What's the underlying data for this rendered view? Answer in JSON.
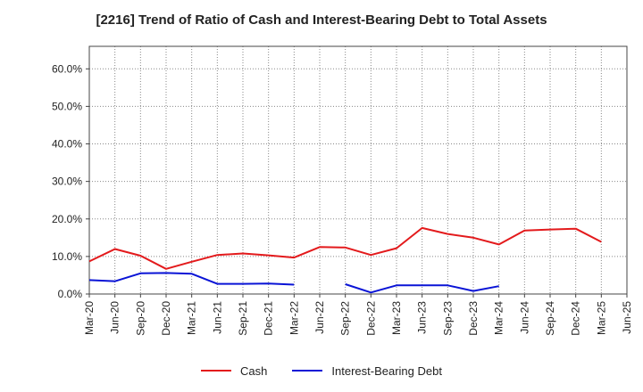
{
  "chart_data": {
    "type": "line",
    "title": "[2216]  Trend of Ratio of Cash and Interest-Bearing Debt to Total Assets",
    "xlabel": "",
    "ylabel": "",
    "ylim": [
      0,
      66
    ],
    "y_ticks": [
      "0.0%",
      "10.0%",
      "20.0%",
      "30.0%",
      "40.0%",
      "50.0%",
      "60.0%"
    ],
    "y_tick_values": [
      0,
      10,
      20,
      30,
      40,
      50,
      60
    ],
    "categories": [
      "Mar-20",
      "Jun-20",
      "Sep-20",
      "Dec-20",
      "Mar-21",
      "Jun-21",
      "Sep-21",
      "Dec-21",
      "Mar-22",
      "Jun-22",
      "Sep-22",
      "Dec-22",
      "Mar-23",
      "Jun-23",
      "Sep-23",
      "Dec-23",
      "Mar-24",
      "Jun-24",
      "Sep-24",
      "Dec-24",
      "Mar-25",
      "Jun-25"
    ],
    "grid": true,
    "legend_position": "bottom",
    "series": [
      {
        "name": "Cash",
        "color": "#e31a1c",
        "values": [
          8.7,
          12.0,
          10.2,
          6.7,
          8.6,
          10.4,
          10.8,
          10.3,
          9.7,
          12.5,
          12.4,
          10.4,
          12.2,
          17.6,
          16.0,
          15.0,
          13.2,
          16.9,
          17.2,
          17.4,
          13.9,
          null
        ]
      },
      {
        "name": "Interest-Bearing Debt",
        "color": "#0a14d6",
        "values": [
          3.7,
          3.4,
          5.5,
          5.6,
          5.4,
          2.7,
          2.7,
          2.8,
          2.5,
          null,
          2.6,
          0.4,
          2.3,
          2.3,
          2.3,
          0.8,
          2.1,
          null,
          null,
          null,
          null,
          null
        ]
      }
    ]
  }
}
